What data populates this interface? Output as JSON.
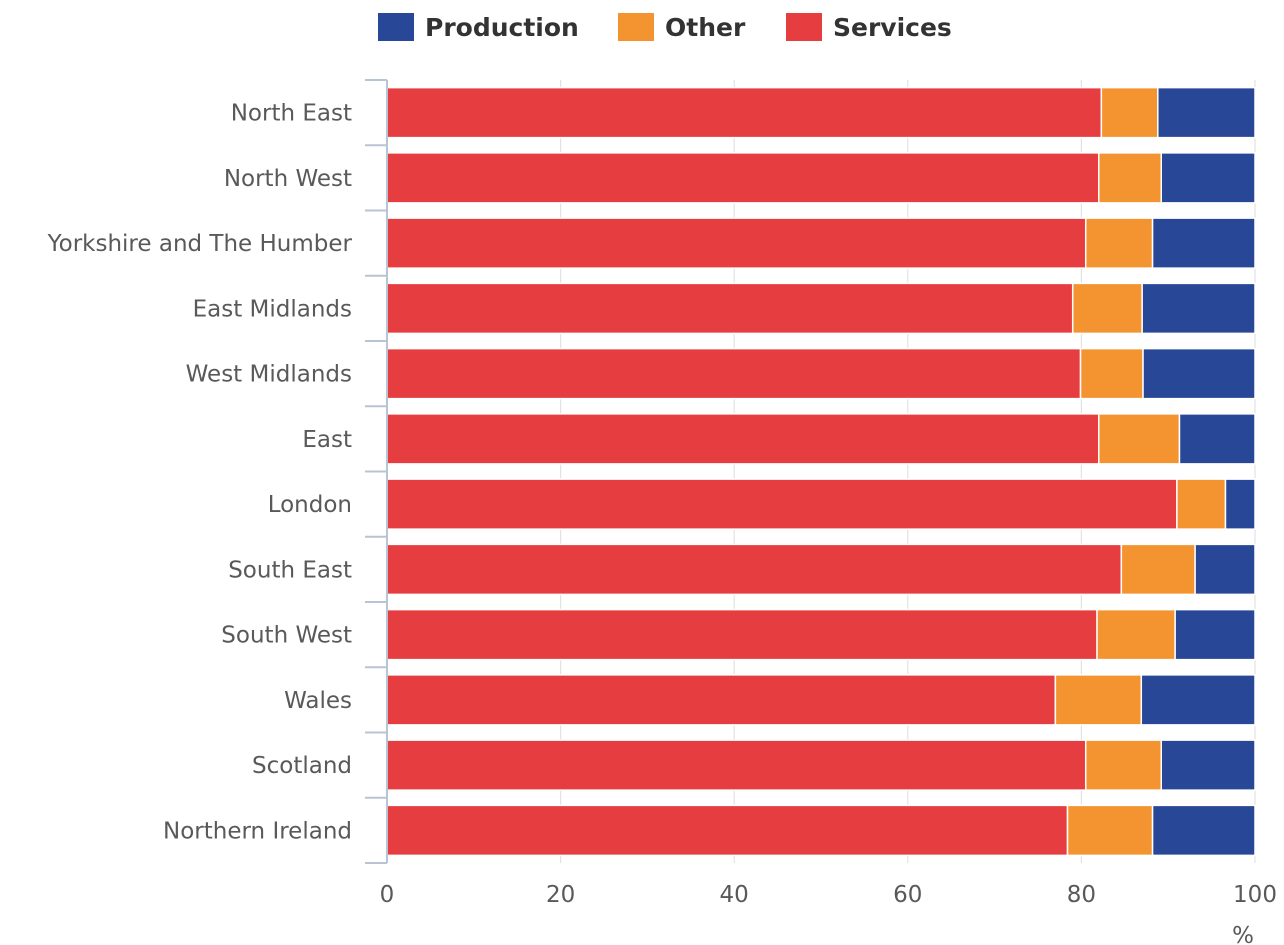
{
  "chart_data": {
    "type": "bar",
    "orientation": "horizontal",
    "stacked": true,
    "categories": [
      "North East",
      "North West",
      "Yorkshire and The Humber",
      "East Midlands",
      "West Midlands",
      "East",
      "London",
      "South East",
      "South West",
      "Wales",
      "Scotland",
      "Northern Ireland"
    ],
    "series": [
      {
        "name": "Services",
        "color": "#e63e40",
        "values": [
          82.3,
          82.0,
          80.5,
          79.0,
          79.9,
          82.0,
          91.0,
          84.6,
          81.8,
          77.0,
          80.5,
          78.4
        ]
      },
      {
        "name": "Other",
        "color": "#f39431",
        "values": [
          6.5,
          7.2,
          7.7,
          8.0,
          7.2,
          9.3,
          5.6,
          8.5,
          9.0,
          9.9,
          8.7,
          9.8
        ]
      },
      {
        "name": "Production",
        "color": "#284797",
        "values": [
          11.2,
          10.8,
          11.8,
          13.0,
          12.9,
          8.7,
          3.4,
          6.9,
          9.2,
          13.1,
          10.8,
          11.8
        ]
      }
    ],
    "legend": {
      "order": [
        "Production",
        "Other",
        "Services"
      ],
      "position": "top"
    },
    "xlim": [
      0,
      100
    ],
    "xticks": [
      "0",
      "20",
      "40",
      "60",
      "80",
      "100"
    ],
    "unit_label": "%",
    "grid": true
  }
}
